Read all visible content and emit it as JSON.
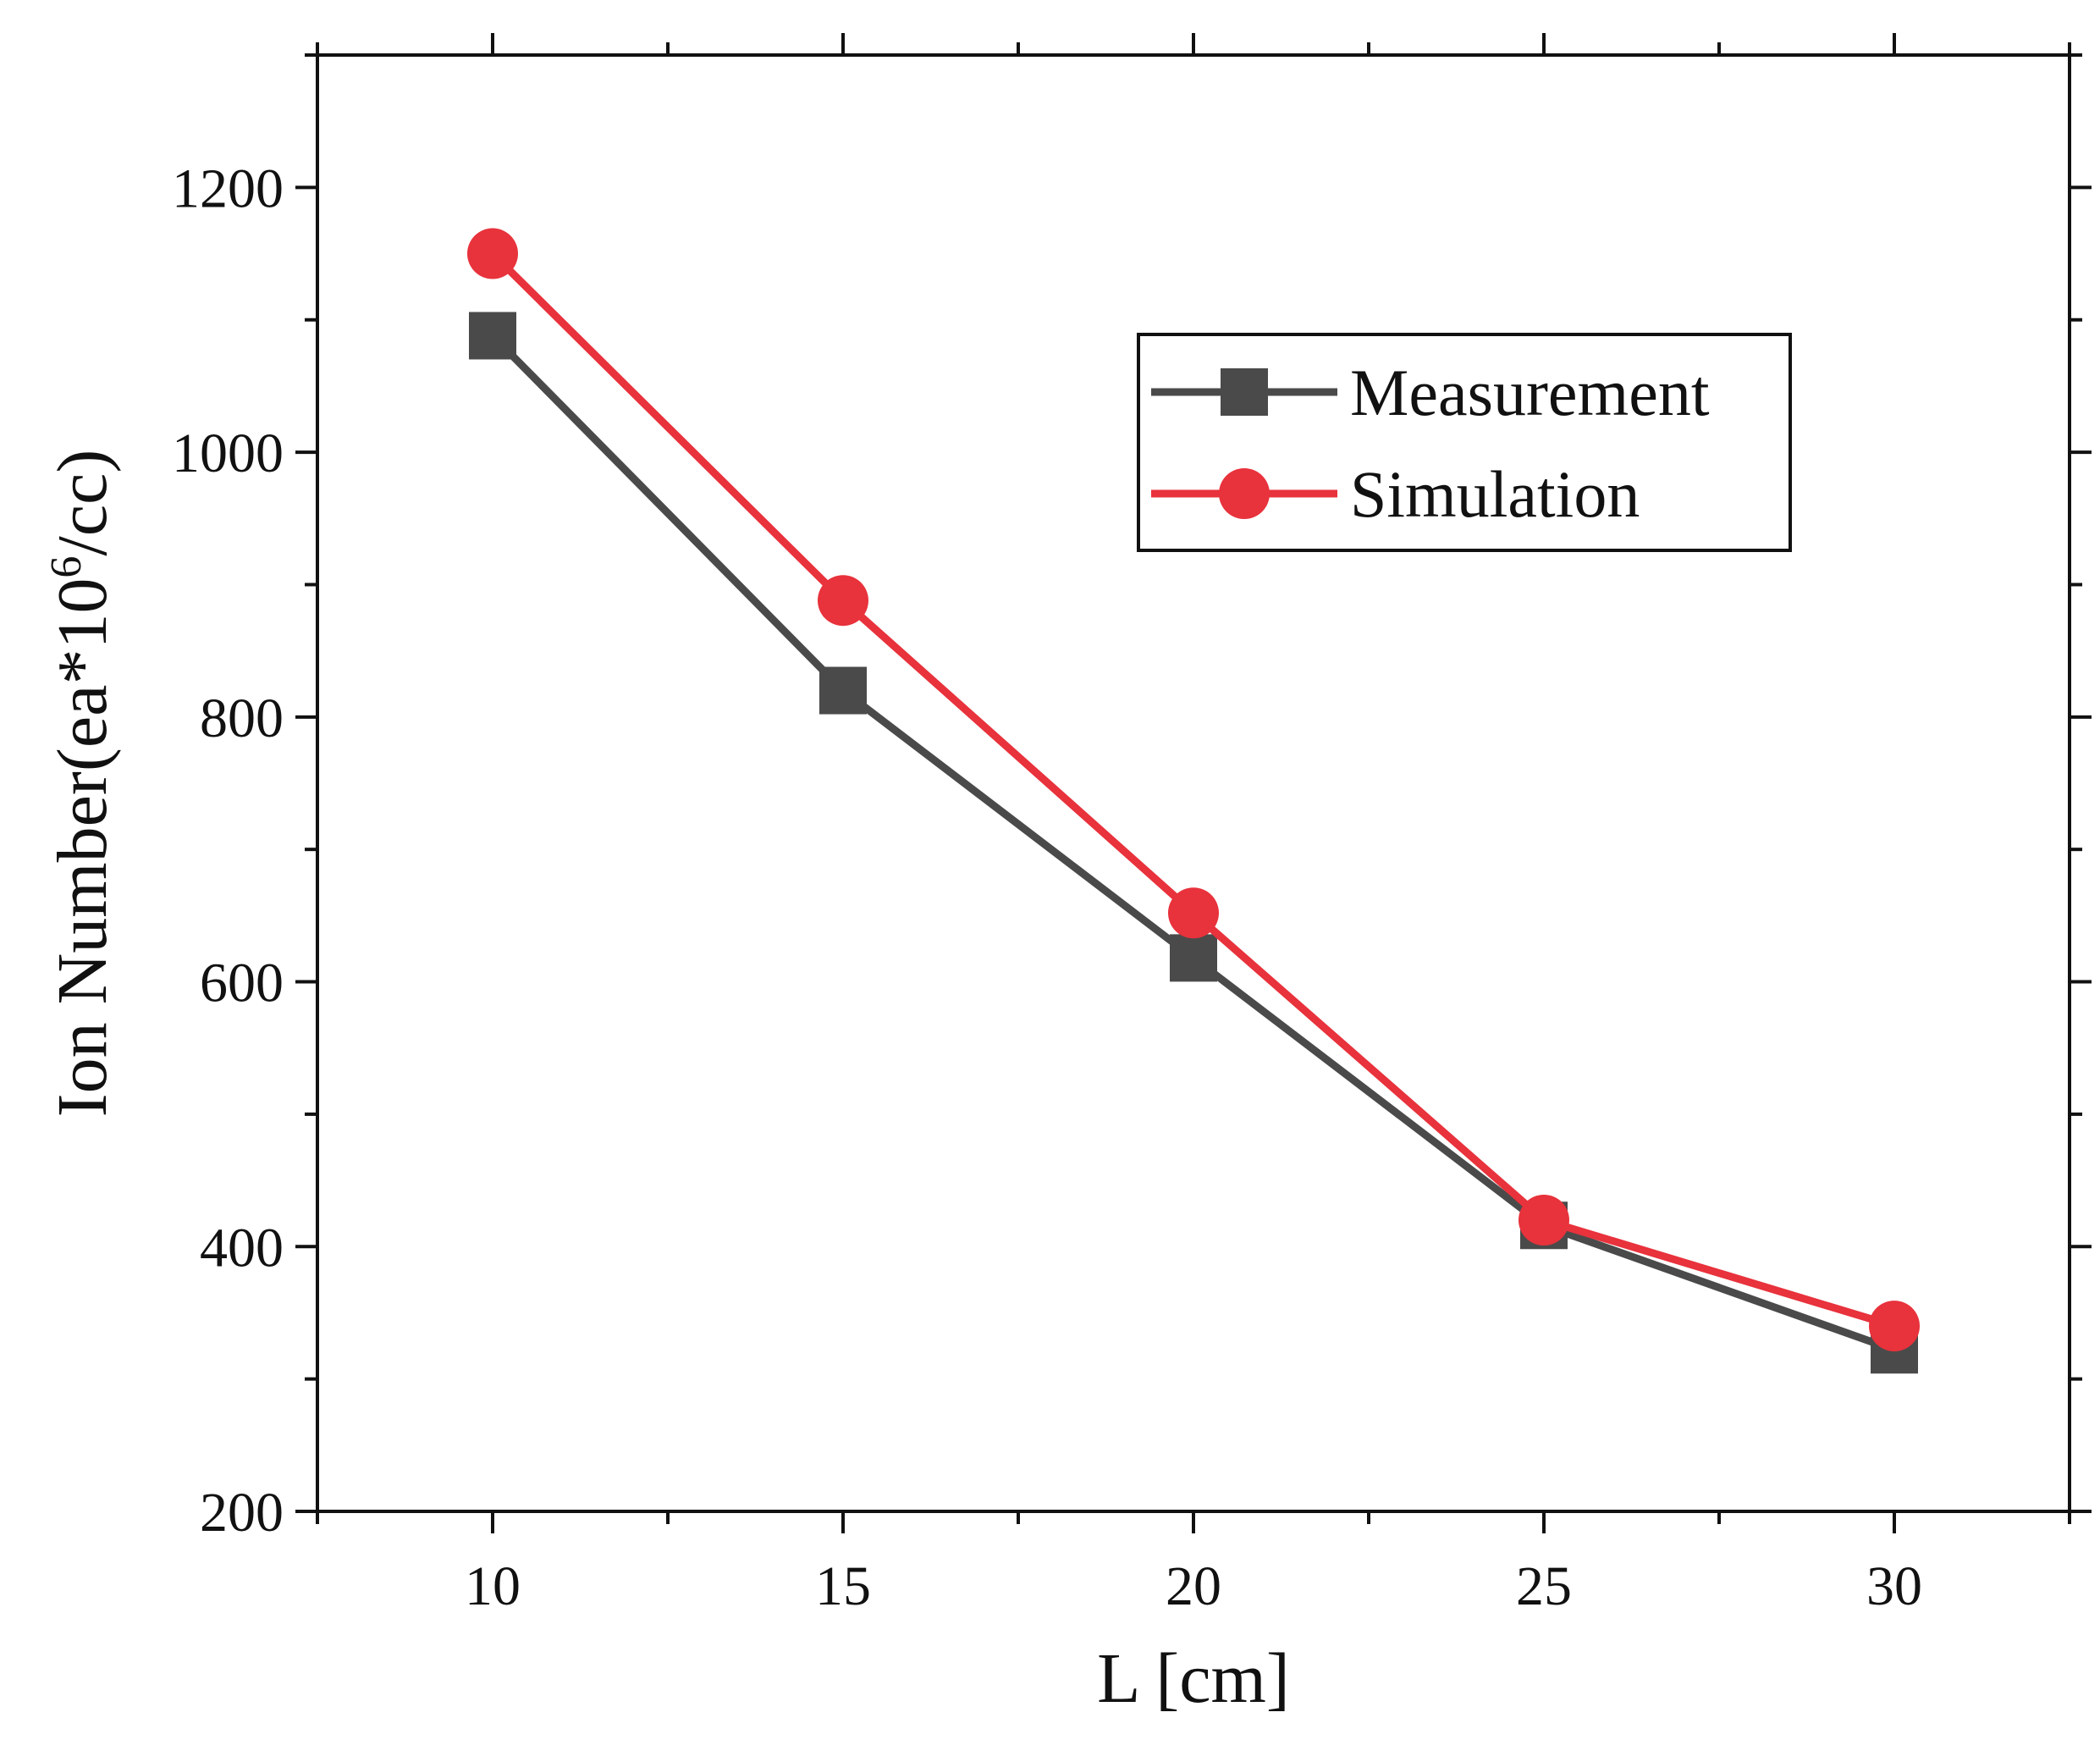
{
  "chart_data": {
    "type": "line",
    "title": "",
    "xlabel": "L [cm]",
    "ylabel": "Ion Number(ea*10",
    "ylabel_superscript": "6",
    "ylabel_suffix": "/cc)",
    "x": [
      10,
      15,
      20,
      25,
      30
    ],
    "x_ticks": [
      10,
      15,
      20,
      25,
      30
    ],
    "x_tick_labels": [
      "10",
      "15",
      "20",
      "25",
      "30"
    ],
    "xlim": [
      7.5,
      32.5
    ],
    "y_ticks": [
      200,
      400,
      600,
      800,
      1000,
      1200
    ],
    "y_tick_labels": [
      "200",
      "400",
      "600",
      "800",
      "1000",
      "1200"
    ],
    "ylim": [
      200,
      1300
    ],
    "grid": false,
    "legend_position": "top-right",
    "series": [
      {
        "name": "Measurement",
        "marker": "square",
        "color": "#4a4a4a",
        "values": [
          1088,
          820,
          618,
          416,
          322
        ]
      },
      {
        "name": "Simulation",
        "marker": "circle",
        "color": "#e8323c",
        "values": [
          1150,
          888,
          652,
          420,
          340
        ]
      }
    ]
  }
}
